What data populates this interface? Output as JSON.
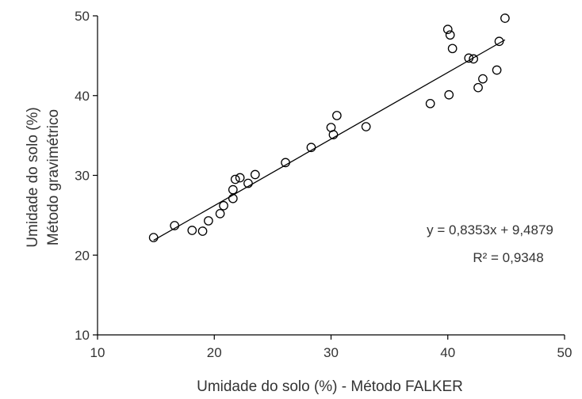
{
  "chart_data": {
    "type": "scatter",
    "title": "",
    "xlabel": "Umidade do solo (%) - Método FALKER",
    "ylabel_lines": [
      "Umidade do solo (%)",
      "Método gravimétrico"
    ],
    "xlim": [
      10,
      50
    ],
    "ylim": [
      10,
      50
    ],
    "xticks": [
      10,
      20,
      30,
      40,
      50
    ],
    "yticks": [
      10,
      20,
      30,
      40,
      50
    ],
    "grid": false,
    "marker": "open-circle",
    "colors": {
      "marker": "#000000",
      "line": "#000000",
      "axis": "#000000"
    },
    "points": [
      [
        14.8,
        22.2
      ],
      [
        16.6,
        23.7
      ],
      [
        18.1,
        23.1
      ],
      [
        19.0,
        23.0
      ],
      [
        19.5,
        24.3
      ],
      [
        20.5,
        25.2
      ],
      [
        20.8,
        26.2
      ],
      [
        21.6,
        27.1
      ],
      [
        21.6,
        28.2
      ],
      [
        21.8,
        29.5
      ],
      [
        22.2,
        29.7
      ],
      [
        22.9,
        29.0
      ],
      [
        23.5,
        30.1
      ],
      [
        26.1,
        31.6
      ],
      [
        28.3,
        33.5
      ],
      [
        30.0,
        36.0
      ],
      [
        30.2,
        35.1
      ],
      [
        30.5,
        37.5
      ],
      [
        33.0,
        36.1
      ],
      [
        38.5,
        39.0
      ],
      [
        40.0,
        48.3
      ],
      [
        40.2,
        47.6
      ],
      [
        40.4,
        45.9
      ],
      [
        40.1,
        40.1
      ],
      [
        41.8,
        44.7
      ],
      [
        42.2,
        44.6
      ],
      [
        42.6,
        41.0
      ],
      [
        43.0,
        42.1
      ],
      [
        44.2,
        43.2
      ],
      [
        44.4,
        46.8
      ],
      [
        44.9,
        49.7
      ]
    ],
    "trendline": {
      "slope": 0.8353,
      "intercept": 9.4879,
      "x_range": [
        14.8,
        44.9
      ]
    },
    "equation_text": "y = 0,8353x + 9,4879",
    "r2_text": "R² = 0,9348"
  }
}
